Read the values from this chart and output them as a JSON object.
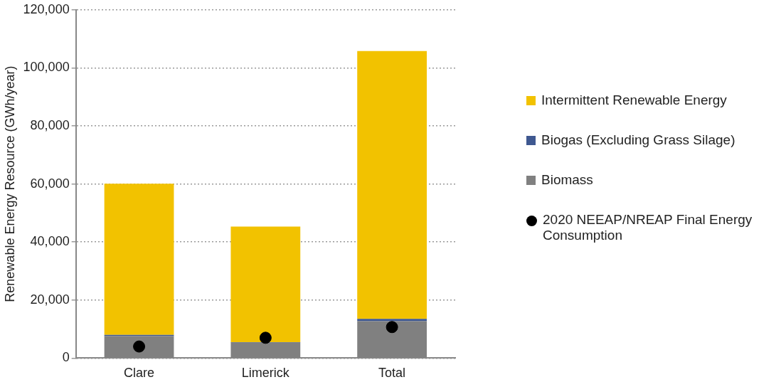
{
  "chart_data": {
    "type": "bar",
    "stacked": true,
    "ylabel": "Renewable Energy Resource (GWh/year)",
    "categories": [
      "Clare",
      "Limerick",
      "Total"
    ],
    "series": [
      {
        "name": "Biomass",
        "color": "#808080",
        "values": [
          7600,
          5300,
          12700
        ]
      },
      {
        "name": "Biogas (Excluding Grass Silage)",
        "color": "#3f5890",
        "values": [
          400,
          200,
          800
        ]
      },
      {
        "name": "Intermittent Renewable Energy",
        "color": "#f2c200",
        "values": [
          52100,
          39800,
          92300
        ]
      },
      {
        "name": "2020 NEEAP/NREAP Final Energy Consumption",
        "type": "scatter",
        "color": "#000000",
        "x": [
          "Clare",
          "Limerick",
          "Total"
        ],
        "values": [
          4000,
          7000,
          10700
        ]
      }
    ],
    "ylim": [
      0,
      120000
    ],
    "yticks": [
      0,
      {
        "value": 20000,
        "label": "20,000"
      },
      {
        "value": 40000,
        "label": "40,000"
      },
      {
        "value": 60000,
        "label": "60,000"
      },
      {
        "value": 80000,
        "label": "80,000"
      },
      {
        "value": 100000,
        "label": "100,000"
      },
      {
        "value": 120000,
        "label": "120,000"
      }
    ],
    "grid": "y",
    "legend": "right",
    "marker": "circle"
  }
}
